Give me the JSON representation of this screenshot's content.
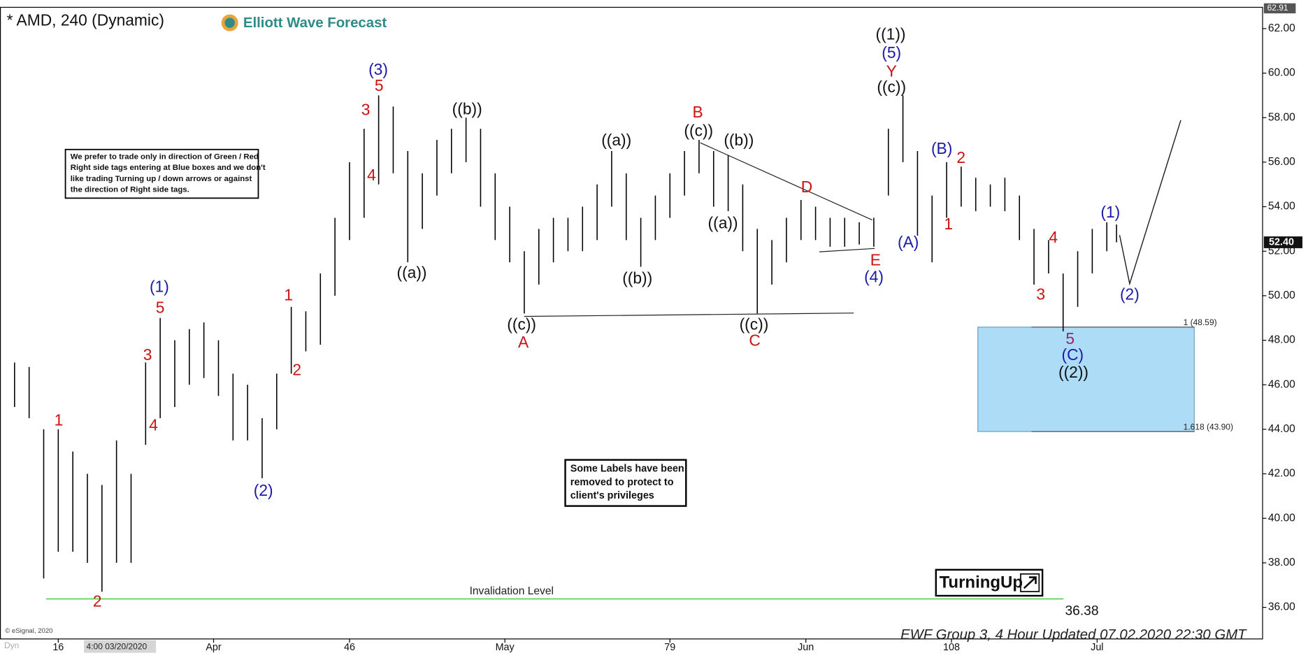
{
  "chart_data": {
    "type": "ohlc",
    "title": "* AMD, 240 (Dynamic)",
    "logo": "Elliott Wave Forecast",
    "x": [
      10,
      11.5,
      13,
      14.5,
      16,
      17.5,
      19,
      20.5,
      22,
      23.5,
      25,
      26.5,
      28,
      29.5,
      31,
      32.5,
      34,
      35.5,
      37,
      38.5,
      40,
      41.5,
      43,
      44.5,
      46,
      47.5,
      49,
      50.5,
      52,
      53.5,
      55,
      56.5,
      58,
      59.5,
      61,
      62.5,
      64,
      65.5,
      67,
      68.5,
      70,
      71.5,
      73,
      74.5,
      76,
      77.5,
      79,
      80.5,
      82,
      83.5,
      85,
      86.5,
      88,
      89.5,
      91,
      92.5,
      94,
      95.5,
      97,
      98.5,
      100,
      101.5,
      103,
      104.5,
      106,
      107.5,
      109,
      110.5,
      112,
      113.5,
      115,
      116.5,
      118,
      119.5,
      121,
      122.5,
      124,
      125
    ],
    "high": [
      47.5,
      47.0,
      46.8,
      44.0,
      44.0,
      43.0,
      42.0,
      41.5,
      43.5,
      42.0,
      47.0,
      49.0,
      48.0,
      48.5,
      48.8,
      48.0,
      46.5,
      46.0,
      44.5,
      46.5,
      49.5,
      49.3,
      51.0,
      53.5,
      56.0,
      57.5,
      59.0,
      58.5,
      56.5,
      55.5,
      57.0,
      57.5,
      58.0,
      57.5,
      55.5,
      54.0,
      52.0,
      53.0,
      53.5,
      53.5,
      54.0,
      55.0,
      56.5,
      55.5,
      53.5,
      54.5,
      55.5,
      56.5,
      57.0,
      56.5,
      56.3,
      55.0,
      53.0,
      52.5,
      53.5,
      54.3,
      54.0,
      53.5,
      53.5,
      53.3,
      53.5,
      57.5,
      59.0,
      56.5,
      54.5,
      56.0,
      55.8,
      55.3,
      55.0,
      55.3,
      54.5,
      53.0,
      52.5,
      51.0,
      52.0,
      53.0,
      53.3,
      53.2
    ],
    "low": [
      44.0,
      45.0,
      44.5,
      37.3,
      38.5,
      38.5,
      38.0,
      36.7,
      38.0,
      38.0,
      43.3,
      44.5,
      45.0,
      46.0,
      46.3,
      45.5,
      43.5,
      43.5,
      41.8,
      44.0,
      46.5,
      47.5,
      47.8,
      50.0,
      52.5,
      53.5,
      55.0,
      55.5,
      51.5,
      53.0,
      54.5,
      55.5,
      56.0,
      54.0,
      52.5,
      51.5,
      49.2,
      50.5,
      51.5,
      52.0,
      52.0,
      52.5,
      54.0,
      52.5,
      51.3,
      52.5,
      53.5,
      54.5,
      55.5,
      54.0,
      53.8,
      52.0,
      49.2,
      50.5,
      51.5,
      52.5,
      52.5,
      52.2,
      52.2,
      52.3,
      52.2,
      54.5,
      56.0,
      52.7,
      51.5,
      53.5,
      54.0,
      53.8,
      54.0,
      53.8,
      52.5,
      50.5,
      51.0,
      48.4,
      49.5,
      51.0,
      52.0,
      52.4
    ],
    "color": "#000000",
    "xlim": [
      10,
      140
    ],
    "ylim": [
      34.6,
      62.9
    ],
    "xticks": [
      16,
      {
        "value": 32,
        "label": "Apr"
      },
      46,
      {
        "value": 62,
        "label": "May"
      },
      79,
      {
        "value": 93,
        "label": "Jun"
      },
      108,
      {
        "value": 123,
        "label": "Jul"
      }
    ],
    "yticks": [
      {
        "value": 36,
        "label": "36.00"
      },
      {
        "value": 38,
        "label": "38.00"
      },
      {
        "value": 40,
        "label": "40.00"
      },
      {
        "value": 42,
        "label": "42.00"
      },
      {
        "value": 44,
        "label": "44.00"
      },
      {
        "value": 46,
        "label": "46.00"
      },
      {
        "value": 48,
        "label": "48.00"
      },
      {
        "value": 50,
        "label": "50.00"
      },
      {
        "value": 52,
        "label": "52.00"
      },
      {
        "value": 54,
        "label": "54.00"
      },
      {
        "value": 56,
        "label": "56.00"
      },
      {
        "value": 58,
        "label": "58.00"
      },
      {
        "value": 60,
        "label": "60.00"
      },
      {
        "value": 62,
        "label": "62.00"
      }
    ],
    "high_tag": {
      "value": 62.91,
      "label": "62.91"
    },
    "last_price": {
      "value": 52.4,
      "label": "52.40"
    },
    "invalidation": {
      "value": 36.38,
      "label": "36.38",
      "text": "Invalidation Level"
    },
    "fib_levels": [
      {
        "value": 48.59,
        "label": "1 (48.59)"
      },
      {
        "value": 43.9,
        "label": "1.618 (43.90)"
      }
    ],
    "cursor_label": "4:00 03/20/2020",
    "feed": "Dyn",
    "copyright": "© eSignal, 2020",
    "footer": "EWF Group 3, 4 Hour Updated 07.02.2020 22:30 GMT",
    "badge": "TurningUp",
    "note_top": [
      "We prefer to trade only in direction of Green / Red",
      "Right side tags entering at Blue boxes and we don't",
      "like trading Turning up / down arrows or against",
      "the direction of Right side tags."
    ],
    "note_bottom": [
      "Some Labels have been",
      "removed to protect to",
      "client's privileges"
    ],
    "wave_labels": [
      {
        "text": "(3)",
        "color": "#1a1aa6"
      },
      {
        "text": "5",
        "color": "#cc1111"
      },
      {
        "text": "3",
        "color": "#cc1111"
      },
      {
        "text": "4",
        "color": "#cc1111"
      },
      {
        "text": "((b))",
        "color": "#111111"
      },
      {
        "text": "((a))",
        "color": "#111111"
      },
      {
        "text": "(1)",
        "color": "#1a1aa6"
      },
      {
        "text": "5",
        "color": "#cc1111"
      },
      {
        "text": "3",
        "color": "#cc1111"
      },
      {
        "text": "4",
        "color": "#cc1111"
      },
      {
        "text": "1",
        "color": "#cc1111"
      },
      {
        "text": "2",
        "color": "#cc1111"
      },
      {
        "text": "(2)",
        "color": "#1a1aa6"
      },
      {
        "text": "1",
        "color": "#cc1111"
      },
      {
        "text": "2",
        "color": "#cc1111"
      },
      {
        "text": "((c))",
        "color": "#111111"
      },
      {
        "text": "A",
        "color": "#cc1111"
      },
      {
        "text": "((a))",
        "color": "#111111"
      },
      {
        "text": "((b))",
        "color": "#111111"
      },
      {
        "text": "B",
        "color": "#cc1111"
      },
      {
        "text": "((c))",
        "color": "#111111"
      },
      {
        "text": "((b))",
        "color": "#111111"
      },
      {
        "text": "((a))",
        "color": "#111111"
      },
      {
        "text": "((c))",
        "color": "#111111"
      },
      {
        "text": "C",
        "color": "#cc1111"
      },
      {
        "text": "D",
        "color": "#cc1111"
      },
      {
        "text": "E",
        "color": "#cc1111"
      },
      {
        "text": "(4)",
        "color": "#1a1aa6"
      },
      {
        "text": "((1))",
        "color": "#111111"
      },
      {
        "text": "(5)",
        "color": "#1a1aa6"
      },
      {
        "text": "Y",
        "color": "#cc1111"
      },
      {
        "text": "((c))",
        "color": "#111111"
      },
      {
        "text": "(A)",
        "color": "#1a1aa6"
      },
      {
        "text": "(B)",
        "color": "#1a1aa6"
      },
      {
        "text": "2",
        "color": "#cc1111"
      },
      {
        "text": "1",
        "color": "#cc1111"
      },
      {
        "text": "3",
        "color": "#cc1111"
      },
      {
        "text": "4",
        "color": "#cc1111"
      },
      {
        "text": "5",
        "color": "#a0206e"
      },
      {
        "text": "(C)",
        "color": "#1a1aa6"
      },
      {
        "text": "((2))",
        "color": "#111111"
      },
      {
        "text": "(1)",
        "color": "#1a1aa6"
      },
      {
        "text": "(2)",
        "color": "#1a1aa6"
      }
    ]
  }
}
